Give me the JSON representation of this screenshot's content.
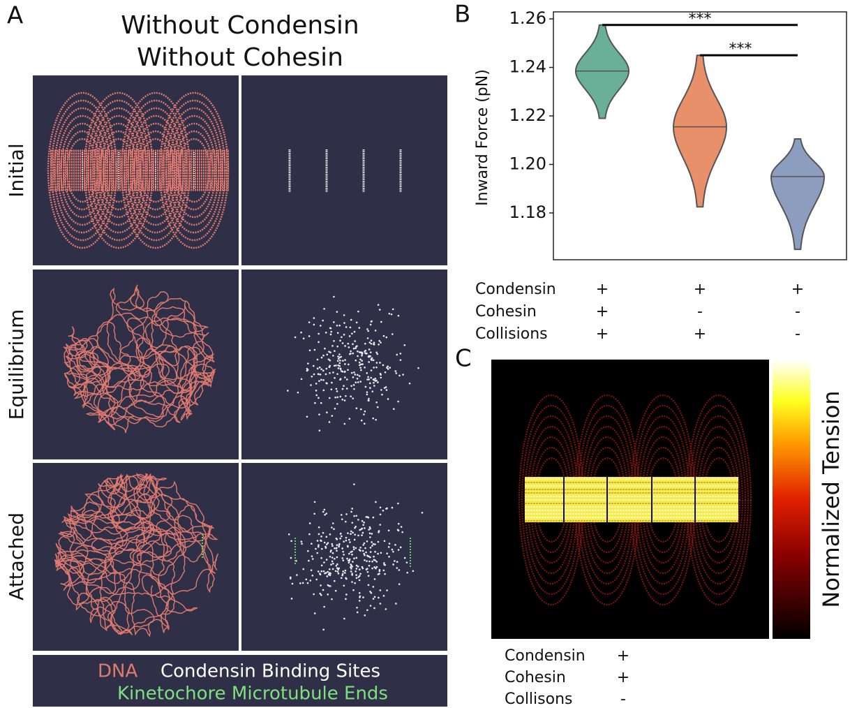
{
  "panel_labels": [
    "A",
    "B",
    "C"
  ],
  "panel_a": {
    "title": [
      "Without Condensin",
      "Without Cohesin"
    ],
    "row_labels": [
      "Initial",
      "Equilibrium",
      "Attached"
    ],
    "legend": [
      "DNA",
      "Condensin Binding Sites",
      "Kinetochore Microtubule Ends"
    ]
  },
  "chart_data": {
    "type": "violin",
    "ylabel": "Inward Force (pN)",
    "categories": [
      null,
      null,
      null
    ],
    "min": [
      1.219,
      1.1825,
      1.165
    ],
    "median": [
      1.2385,
      1.2155,
      1.195
    ],
    "max": [
      1.2575,
      1.245,
      1.2105
    ],
    "colors": [
      "#6aaf98",
      "#e8906a",
      "#8d9dc0"
    ],
    "annotations": [
      "***",
      "***"
    ],
    "ylim": [
      1.1607,
      1.2629
    ],
    "yticks": [
      1.18,
      {
        "value": 1.2,
        "label": "1.20"
      },
      1.22,
      1.24,
      1.26
    ]
  },
  "panel_b_table": {
    "rows": [
      [
        "Condensin",
        "+",
        "+",
        "+"
      ],
      [
        "Cohesin",
        "+",
        "-",
        "-"
      ],
      [
        "Collisions",
        "+",
        "+",
        "-"
      ]
    ]
  },
  "panel_c": {
    "colorbar_label": "Normalized Tension",
    "rows": [
      [
        "Condensin",
        "+"
      ],
      [
        "Cohesin",
        "+"
      ],
      [
        "Collisons",
        "-"
      ]
    ]
  }
}
